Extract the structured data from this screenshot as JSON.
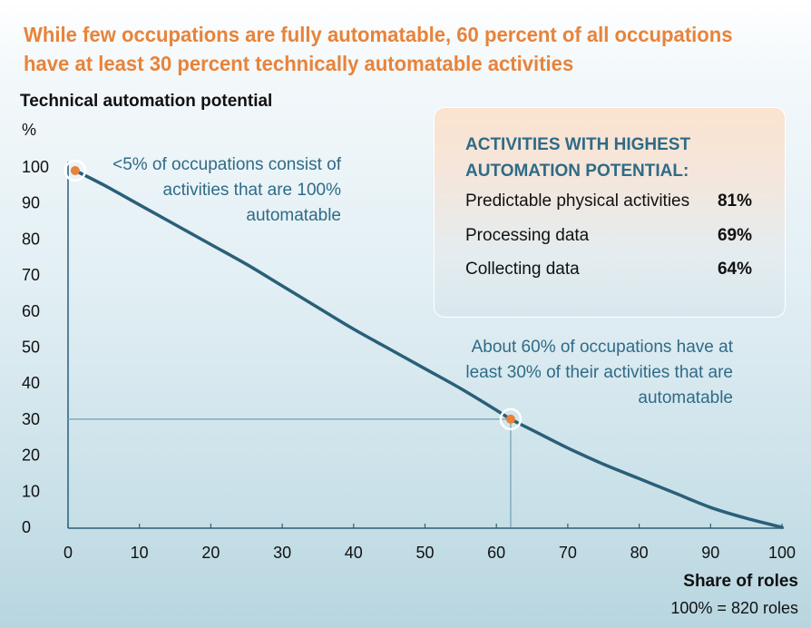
{
  "title": "While few occupations are fully automatable, 60 percent of all occupations have at least 30 percent technically automatable activities",
  "colors": {
    "title": "#e8833a",
    "line": "#2a5f78",
    "callout": "#2f6b86",
    "marker": "#e8833a"
  },
  "panel": {
    "title": "ACTIVITIES WITH HIGHEST AUTOMATION POTENTIAL:",
    "rows": [
      {
        "label": "Predictable physical activities",
        "value": "81%"
      },
      {
        "label": "Processing data",
        "value": "69%"
      },
      {
        "label": "Collecting data",
        "value": "64%"
      }
    ]
  },
  "annotations": {
    "top": "<5% of occupations consist of activities that are 100% automatable",
    "mid": "About 60% of occupations have at least 30% of their activities that are automatable"
  },
  "chart_data": {
    "type": "line",
    "ylabel": "Technical automation potential",
    "yunit": "%",
    "xlabel": "Share of roles",
    "xnote": "100% = 820 roles",
    "xlim": [
      0,
      100
    ],
    "ylim": [
      0,
      100
    ],
    "xticks": [
      0,
      10,
      20,
      30,
      40,
      50,
      60,
      70,
      80,
      90,
      100
    ],
    "yticks": [
      0,
      10,
      20,
      30,
      40,
      50,
      60,
      70,
      80,
      90,
      100
    ],
    "series": [
      {
        "x": [
          1,
          5,
          10,
          15,
          20,
          25,
          30,
          35,
          40,
          45,
          50,
          55,
          60,
          62,
          65,
          70,
          75,
          80,
          85,
          90,
          95,
          100
        ],
        "y": [
          99,
          95,
          89.5,
          84,
          78.5,
          73,
          67,
          61,
          55,
          49.5,
          44,
          38.5,
          32.5,
          30,
          27,
          22,
          17.5,
          13.5,
          9.5,
          5.5,
          2.5,
          0
        ]
      }
    ],
    "highlight_points": [
      {
        "x": 1,
        "y": 99
      },
      {
        "x": 62,
        "y": 30
      }
    ],
    "reference_lines": [
      {
        "x": 62,
        "y": 30
      }
    ],
    "grid": false
  }
}
